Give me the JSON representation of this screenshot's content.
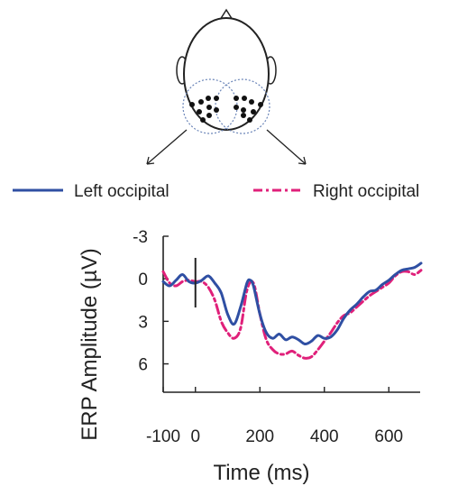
{
  "chart_data": {
    "type": "line",
    "xlabel": "Time (ms)",
    "ylabel": "ERP Amplitude (µV)",
    "xlim": [
      -100,
      700
    ],
    "ylim": [
      -3,
      8
    ],
    "y_inverted": true,
    "x_ticks": [
      -100,
      0,
      200,
      400,
      600
    ],
    "x_tick_labels": [
      "-100",
      "0",
      "200",
      "400",
      "600"
    ],
    "y_ticks": [
      -3,
      0,
      3,
      6
    ],
    "y_tick_labels": [
      "-3",
      "0",
      "3",
      "6"
    ],
    "stimulus_onset_marker_x": 0,
    "legend_position": "top",
    "series": [
      {
        "name": "Left occipital",
        "color": "#2f4fa3",
        "style": "solid",
        "x": [
          -100,
          -80,
          -60,
          -40,
          -20,
          0,
          20,
          40,
          60,
          80,
          100,
          120,
          140,
          160,
          170,
          180,
          200,
          220,
          240,
          260,
          280,
          300,
          320,
          340,
          360,
          380,
          400,
          420,
          440,
          460,
          480,
          500,
          520,
          540,
          560,
          580,
          600,
          620,
          640,
          660,
          680,
          700
        ],
        "y": [
          0.2,
          0.5,
          0.1,
          -0.3,
          0.2,
          0.3,
          0.1,
          -0.2,
          0.3,
          1.0,
          2.5,
          3.2,
          2.0,
          0.3,
          0.1,
          0.5,
          2.5,
          3.8,
          4.2,
          3.9,
          4.3,
          4.1,
          4.3,
          4.6,
          4.4,
          4.0,
          4.2,
          4.1,
          3.6,
          2.8,
          2.2,
          1.8,
          1.3,
          0.9,
          0.8,
          0.4,
          0.1,
          -0.3,
          -0.6,
          -0.7,
          -0.8,
          -1.1
        ]
      },
      {
        "name": "Right occipital",
        "color": "#e0207a",
        "style": "dash-dot",
        "x": [
          -100,
          -80,
          -60,
          -40,
          -20,
          0,
          20,
          40,
          60,
          80,
          100,
          120,
          140,
          160,
          180,
          200,
          220,
          240,
          260,
          280,
          300,
          320,
          340,
          360,
          380,
          400,
          420,
          440,
          460,
          480,
          500,
          520,
          540,
          560,
          580,
          600,
          620,
          640,
          660,
          680,
          700
        ],
        "y": [
          -0.5,
          0.3,
          0.5,
          0.2,
          0.1,
          0.2,
          0.2,
          0.6,
          1.5,
          3.0,
          3.8,
          4.2,
          3.5,
          0.8,
          0.3,
          2.5,
          4.3,
          5.0,
          5.3,
          5.3,
          5.1,
          5.4,
          5.6,
          5.5,
          5.0,
          4.4,
          3.8,
          3.1,
          2.6,
          2.4,
          2.0,
          1.6,
          1.2,
          0.9,
          0.6,
          0.3,
          -0.2,
          -0.5,
          -0.5,
          -0.3,
          -0.6
        ]
      }
    ]
  }
}
